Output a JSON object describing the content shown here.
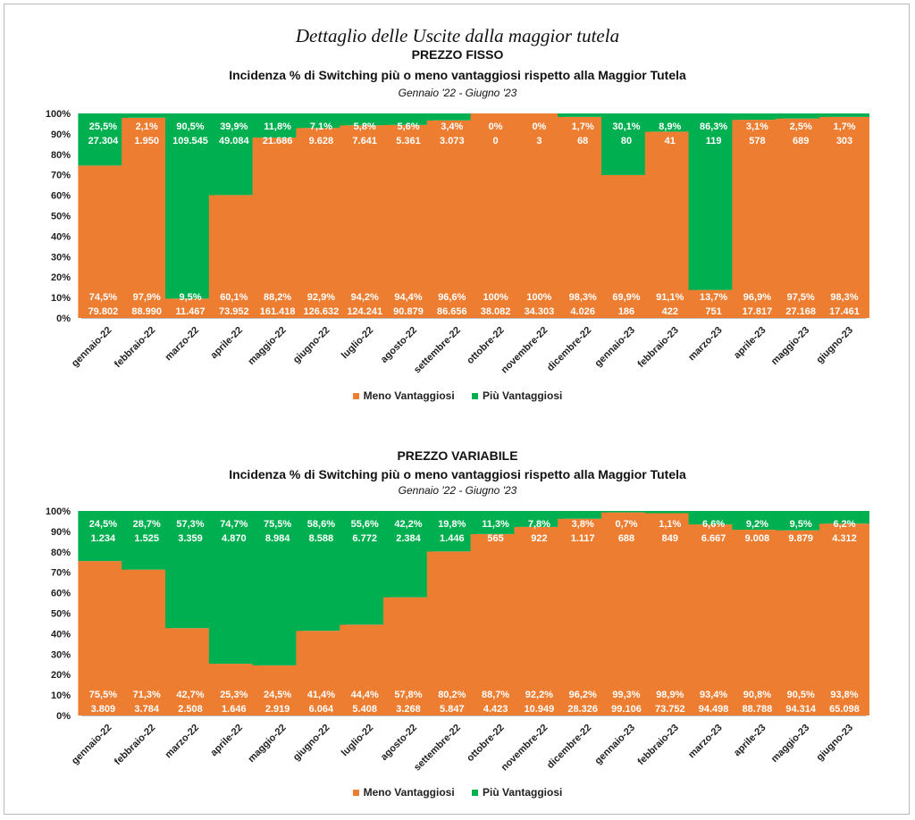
{
  "page_title": "Dettaglio delle Uscite dalla maggior tutela",
  "colors": {
    "meno": "#ED7D31",
    "piu": "#00B050"
  },
  "chart_data": [
    {
      "type": "bar",
      "stacked": true,
      "title": "PREZZO FISSO",
      "subtitle": "Incidenza % di Switching più o meno vantaggiosi rispetto alla Maggior Tutela",
      "period": "Gennaio '22 - Giugno '23",
      "ylim": [
        0,
        100
      ],
      "yticks": [
        "0%",
        "10%",
        "20%",
        "30%",
        "40%",
        "50%",
        "60%",
        "70%",
        "80%",
        "90%",
        "100%"
      ],
      "legend_position": "bottom",
      "categories": [
        "gennaio-22",
        "febbraio-22",
        "marzo-22",
        "aprile-22",
        "maggio-22",
        "giugno-22",
        "luglio-22",
        "agosto-22",
        "settembre-22",
        "ottobre-22",
        "novembre-22",
        "dicembre-22",
        "gennaio-23",
        "febbraio-23",
        "marzo-23",
        "aprile-23",
        "maggio-23",
        "giugno-23"
      ],
      "series": [
        {
          "name": "Meno Vantaggiosi",
          "values": [
            74.5,
            97.9,
            9.5,
            60.1,
            88.2,
            92.9,
            94.2,
            94.4,
            96.6,
            100,
            100,
            98.3,
            69.9,
            91.1,
            13.7,
            96.9,
            97.5,
            98.3
          ],
          "pct_labels": [
            "74,5%",
            "97,9%",
            "9,5%",
            "60,1%",
            "88,2%",
            "92,9%",
            "94,2%",
            "94,4%",
            "96,6%",
            "100%",
            "100%",
            "98,3%",
            "69,9%",
            "91,1%",
            "13,7%",
            "96,9%",
            "97,5%",
            "98,3%"
          ],
          "count_labels": [
            "79.802",
            "88.990",
            "11.467",
            "73.952",
            "161.418",
            "126.632",
            "124.241",
            "90.879",
            "86.656",
            "38.082",
            "34.303",
            "4.026",
            "186",
            "422",
            "751",
            "17.817",
            "27.168",
            "17.461"
          ]
        },
        {
          "name": "Più Vantaggiosi",
          "values": [
            25.5,
            2.1,
            90.5,
            39.9,
            11.8,
            7.1,
            5.8,
            5.6,
            3.4,
            0,
            0,
            1.7,
            30.1,
            8.9,
            86.3,
            3.1,
            2.5,
            1.7
          ],
          "pct_labels": [
            "25,5%",
            "2,1%",
            "90,5%",
            "39,9%",
            "11,8%",
            "7,1%",
            "5,8%",
            "5,6%",
            "3,4%",
            "0%",
            "0%",
            "1,7%",
            "30,1%",
            "8,9%",
            "86,3%",
            "3,1%",
            "2,5%",
            "1,7%"
          ],
          "count_labels": [
            "27.304",
            "1.950",
            "109.545",
            "49.084",
            "21.686",
            "9.628",
            "7.641",
            "5.361",
            "3.073",
            "0",
            "3",
            "68",
            "80",
            "41",
            "119",
            "578",
            "689",
            "303"
          ]
        }
      ]
    },
    {
      "type": "bar",
      "stacked": true,
      "title": "PREZZO VARIABILE",
      "subtitle": "Incidenza % di Switching più o meno vantaggiosi rispetto alla Maggior Tutela",
      "period": "Gennaio '22 - Giugno '23",
      "ylim": [
        0,
        100
      ],
      "yticks": [
        "0%",
        "10%",
        "20%",
        "30%",
        "40%",
        "50%",
        "60%",
        "70%",
        "80%",
        "90%",
        "100%"
      ],
      "legend_position": "bottom",
      "categories": [
        "gennaio-22",
        "febbraio-22",
        "marzo-22",
        "aprile-22",
        "maggio-22",
        "giugno-22",
        "luglio-22",
        "agosto-22",
        "settembre-22",
        "ottobre-22",
        "novembre-22",
        "dicembre-22",
        "gennaio-23",
        "febbraio-23",
        "marzo-23",
        "aprile-23",
        "maggio-23",
        "giugno-23"
      ],
      "series": [
        {
          "name": "Meno Vantaggiosi",
          "values": [
            75.5,
            71.3,
            42.7,
            25.3,
            24.5,
            41.4,
            44.4,
            57.8,
            80.2,
            88.7,
            92.2,
            96.2,
            99.3,
            98.9,
            93.4,
            90.8,
            90.5,
            93.8
          ],
          "pct_labels": [
            "75,5%",
            "71,3%",
            "42,7%",
            "25,3%",
            "24,5%",
            "41,4%",
            "44,4%",
            "57,8%",
            "80,2%",
            "88,7%",
            "92,2%",
            "96,2%",
            "99,3%",
            "98,9%",
            "93,4%",
            "90,8%",
            "90,5%",
            "93,8%"
          ],
          "count_labels": [
            "3.809",
            "3.784",
            "2.508",
            "1.646",
            "2.919",
            "6.064",
            "5.408",
            "3.268",
            "5.847",
            "4.423",
            "10.949",
            "28.326",
            "99.106",
            "73.752",
            "94.498",
            "88.788",
            "94.314",
            "65.098"
          ]
        },
        {
          "name": "Più Vantaggiosi",
          "values": [
            24.5,
            28.7,
            57.3,
            74.7,
            75.5,
            58.6,
            55.6,
            42.2,
            19.8,
            11.3,
            7.8,
            3.8,
            0.7,
            1.1,
            6.6,
            9.2,
            9.5,
            6.2
          ],
          "pct_labels": [
            "24,5%",
            "28,7%",
            "57,3%",
            "74,7%",
            "75,5%",
            "58,6%",
            "55,6%",
            "42,2%",
            "19,8%",
            "11,3%",
            "7,8%",
            "3,8%",
            "0,7%",
            "1,1%",
            "6,6%",
            "9,2%",
            "9,5%",
            "6,2%"
          ],
          "count_labels": [
            "1.234",
            "1.525",
            "3.359",
            "4.870",
            "8.984",
            "8.588",
            "6.772",
            "2.384",
            "1.446",
            "565",
            "922",
            "1.117",
            "688",
            "849",
            "6.667",
            "9.008",
            "9.879",
            "4.312"
          ]
        }
      ]
    }
  ]
}
